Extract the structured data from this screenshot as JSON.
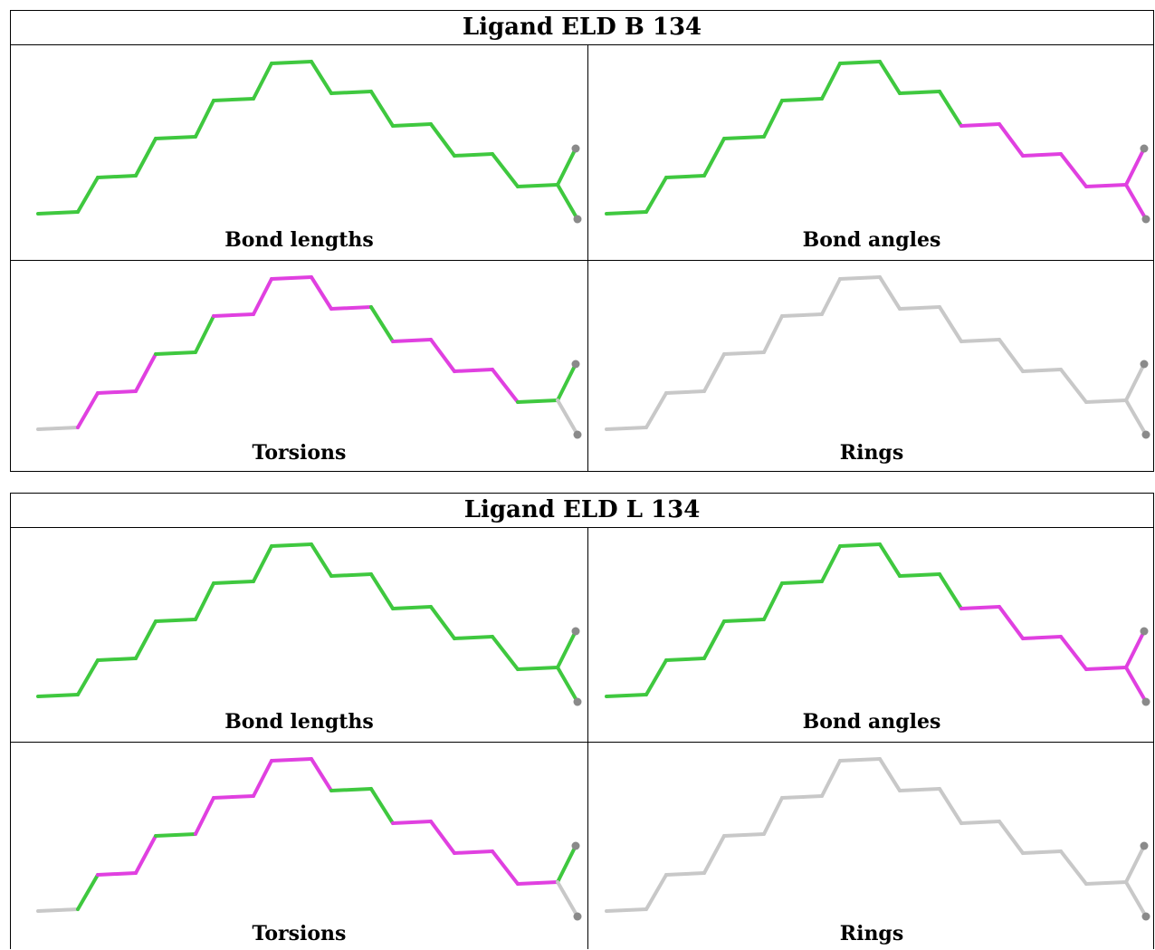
{
  "colors": {
    "outlier": "#e040e0",
    "ok": "#3fc83f",
    "not_applicable": "#c8c8c8",
    "atom": "#8a8a8a",
    "border": "#000000"
  },
  "panels": [
    {
      "title": "Ligand ELD B 134",
      "cells": [
        {
          "label": "Bond lengths",
          "bond_colors": [
            "ok",
            "ok",
            "ok",
            "ok",
            "ok",
            "ok",
            "ok",
            "ok",
            "ok",
            "ok",
            "ok",
            "ok",
            "ok",
            "ok",
            "ok",
            "ok",
            "ok",
            "ok",
            "ok",
            "ok"
          ]
        },
        {
          "label": "Bond angles",
          "bond_colors": [
            "ok",
            "ok",
            "ok",
            "ok",
            "ok",
            "ok",
            "ok",
            "ok",
            "ok",
            "ok",
            "ok",
            "ok",
            "outlier",
            "outlier",
            "outlier",
            "outlier",
            "outlier",
            "outlier",
            "outlier",
            "ok"
          ]
        },
        {
          "label": "Torsions",
          "bond_colors": [
            "not_applicable",
            "outlier",
            "outlier",
            "outlier",
            "ok",
            "ok",
            "outlier",
            "outlier",
            "outlier",
            "outlier",
            "outlier",
            "ok",
            "outlier",
            "outlier",
            "outlier",
            "outlier",
            "ok",
            "ok",
            "not_applicable",
            "not_applicable"
          ]
        },
        {
          "label": "Rings",
          "bond_colors": [
            "not_applicable",
            "not_applicable",
            "not_applicable",
            "not_applicable",
            "not_applicable",
            "not_applicable",
            "not_applicable",
            "not_applicable",
            "not_applicable",
            "not_applicable",
            "not_applicable",
            "not_applicable",
            "not_applicable",
            "not_applicable",
            "not_applicable",
            "not_applicable",
            "not_applicable",
            "not_applicable",
            "not_applicable",
            "not_applicable"
          ]
        }
      ]
    },
    {
      "title": "Ligand ELD L 134",
      "cells": [
        {
          "label": "Bond lengths",
          "bond_colors": [
            "ok",
            "ok",
            "ok",
            "ok",
            "ok",
            "ok",
            "ok",
            "ok",
            "ok",
            "ok",
            "ok",
            "ok",
            "ok",
            "ok",
            "ok",
            "ok",
            "ok",
            "ok",
            "ok",
            "ok"
          ]
        },
        {
          "label": "Bond angles",
          "bond_colors": [
            "ok",
            "ok",
            "ok",
            "ok",
            "ok",
            "ok",
            "ok",
            "ok",
            "ok",
            "ok",
            "ok",
            "ok",
            "outlier",
            "outlier",
            "outlier",
            "outlier",
            "outlier",
            "outlier",
            "outlier",
            "ok"
          ]
        },
        {
          "label": "Torsions",
          "bond_colors": [
            "not_applicable",
            "ok",
            "outlier",
            "outlier",
            "ok",
            "outlier",
            "outlier",
            "outlier",
            "outlier",
            "outlier",
            "ok",
            "ok",
            "outlier",
            "outlier",
            "outlier",
            "outlier",
            "outlier",
            "ok",
            "not_applicable",
            "not_applicable"
          ]
        },
        {
          "label": "Rings",
          "bond_colors": [
            "not_applicable",
            "not_applicable",
            "not_applicable",
            "not_applicable",
            "not_applicable",
            "not_applicable",
            "not_applicable",
            "not_applicable",
            "not_applicable",
            "not_applicable",
            "not_applicable",
            "not_applicable",
            "not_applicable",
            "not_applicable",
            "not_applicable",
            "not_applicable",
            "not_applicable",
            "not_applicable",
            "not_applicable",
            "not_applicable"
          ]
        }
      ]
    }
  ]
}
